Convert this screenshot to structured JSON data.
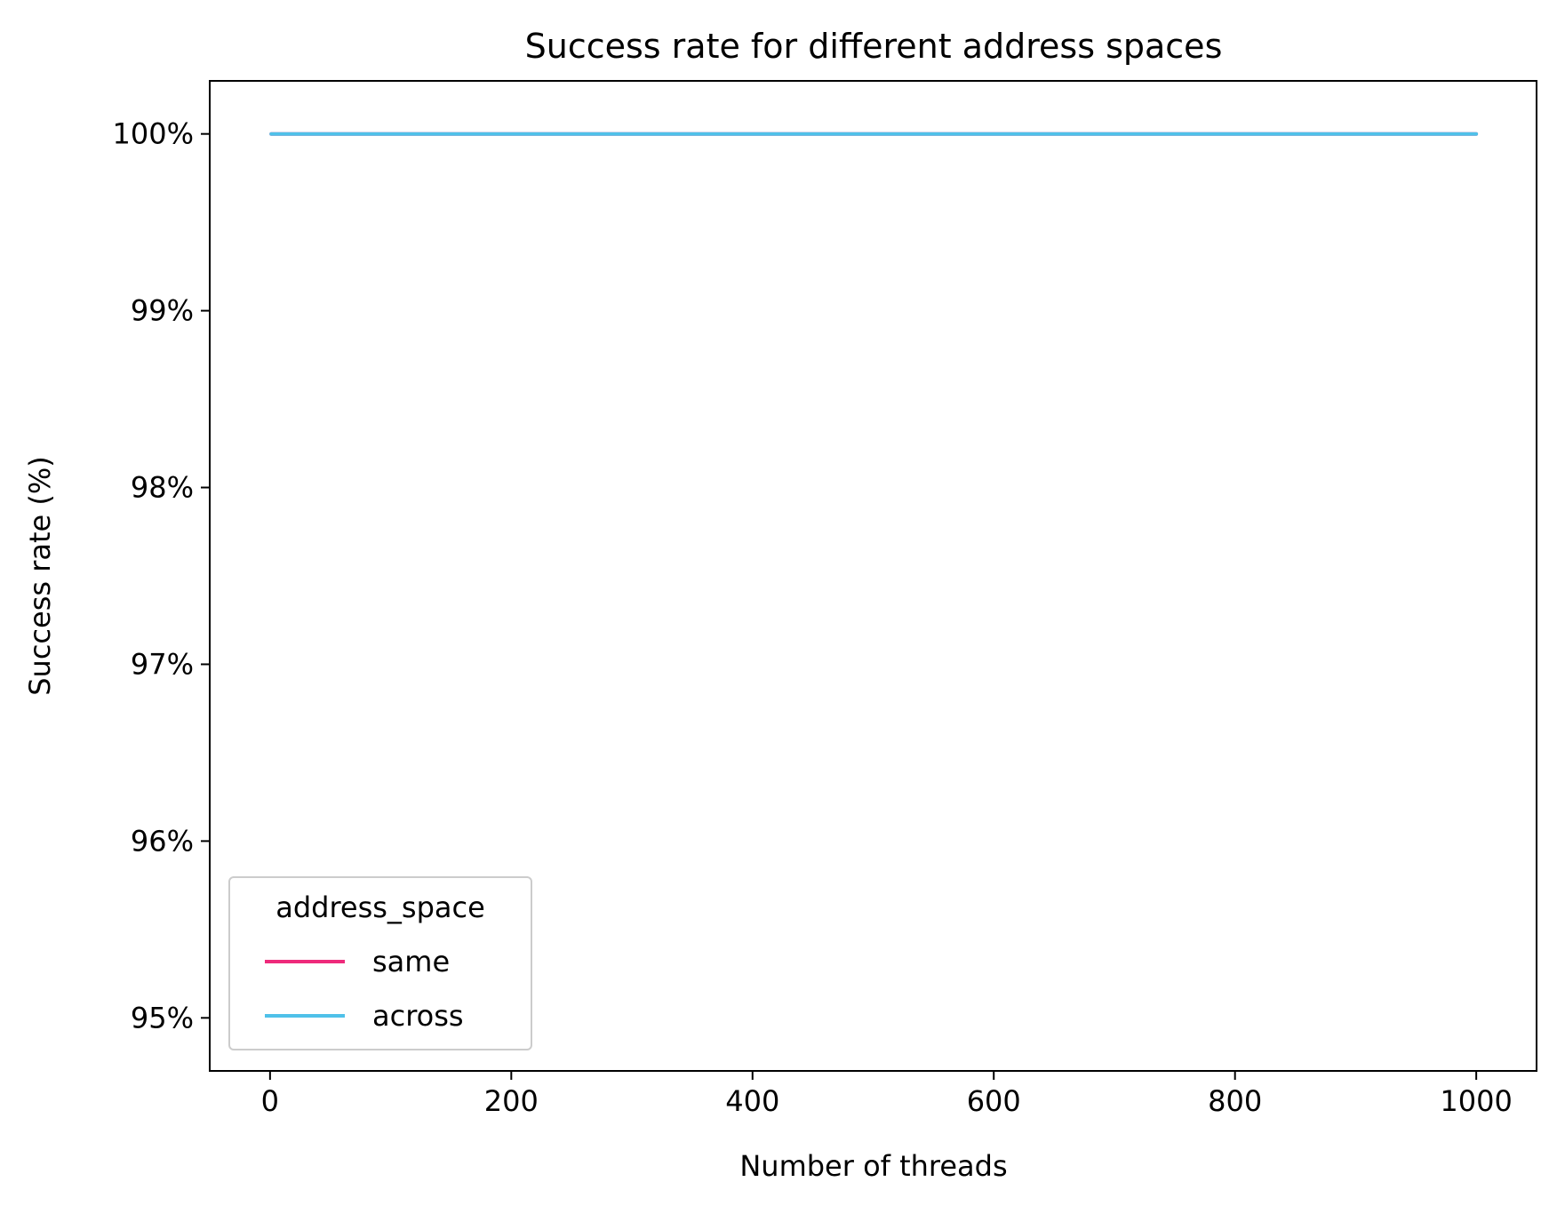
{
  "chart_data": {
    "type": "line",
    "title": "Success rate for different address spaces",
    "xlabel": "Number of threads",
    "ylabel": "Success rate (%)",
    "xlim": [
      -50,
      1050
    ],
    "ylim": [
      94.7,
      100.3
    ],
    "x_ticks": [
      0,
      200,
      400,
      600,
      800,
      1000
    ],
    "x_tick_labels": [
      "0",
      "200",
      "400",
      "600",
      "800",
      "1000"
    ],
    "y_ticks": [
      95,
      96,
      97,
      98,
      99,
      100
    ],
    "y_tick_labels": [
      "95%",
      "96%",
      "97%",
      "98%",
      "99%",
      "100%"
    ],
    "grid": false,
    "legend": {
      "title": "address_space",
      "placement": "lower-left"
    },
    "series": [
      {
        "name": "same",
        "color": "#ee2a7b",
        "x": [
          1,
          2,
          4,
          8,
          16,
          32,
          64,
          128,
          256,
          512,
          1000
        ],
        "values": [
          100,
          100,
          100,
          100,
          100,
          100,
          100,
          100,
          100,
          100,
          100
        ]
      },
      {
        "name": "across",
        "color": "#4fc1e9",
        "x": [
          1,
          2,
          4,
          8,
          16,
          32,
          64,
          128,
          256,
          512,
          1000
        ],
        "values": [
          100,
          100,
          100,
          100,
          100,
          100,
          100,
          100,
          100,
          100,
          100
        ]
      }
    ]
  }
}
